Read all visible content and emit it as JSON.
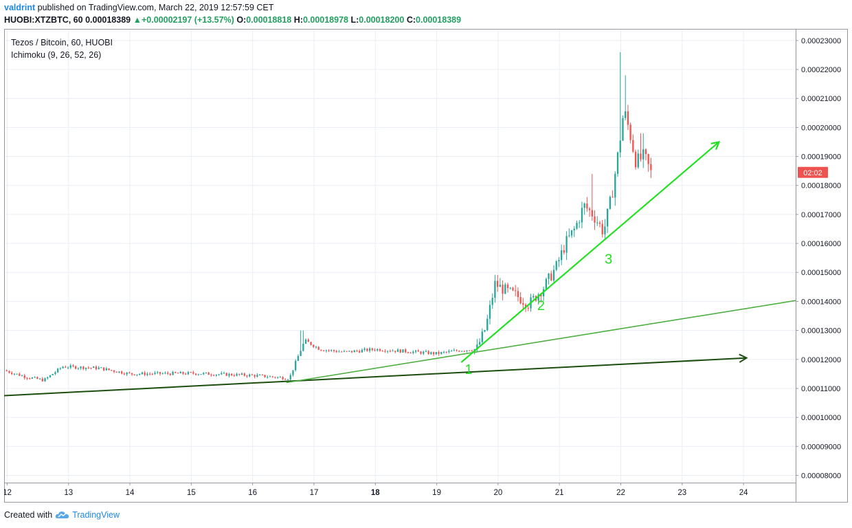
{
  "header": {
    "author": "valdrint",
    "published_text": "published on TradingView.com, March 22, 2019 12:57:59 CET"
  },
  "quote": {
    "symbol": "HUOBI:XTZBTC, 60",
    "last": "0.00018389",
    "change": "+0.00002197 (+13.57%)",
    "o_label": "O:",
    "o": "0.00018818",
    "h_label": "H:",
    "h": "0.00018978",
    "l_label": "L:",
    "l": "0.00018200",
    "c_label": "C:",
    "c": "0.00018389"
  },
  "legend": {
    "title": "Tezos / Bitcoin, 60, HUOBI",
    "indicator": "Ichimoku (9, 26, 52, 26)"
  },
  "footer": {
    "created_with": "Created with",
    "brand": "TradingView"
  },
  "colors": {
    "up": "#26a69a",
    "down": "#ef5350",
    "trend_bright": "#22e022",
    "trend_mid": "#4caf40",
    "trend_dark": "#1b4d0e",
    "price_label_bg": "#ef5350",
    "grid": "#e9eef5"
  },
  "chart_data": {
    "type": "candlestick",
    "timeframe": "60",
    "x_tick_labels": [
      "12",
      "13",
      "14",
      "15",
      "16",
      "17",
      "18",
      "19",
      "20",
      "21",
      "22",
      "23",
      "24"
    ],
    "bold_x_ticks": [
      "18"
    ],
    "y_tick_labels": [
      "0.00008000",
      "0.00009000",
      "0.00010000",
      "0.00011000",
      "0.00012000",
      "0.00013000",
      "0.00014000",
      "0.00015000",
      "0.00016000",
      "0.00017000",
      "0.00018000",
      "0.00019000",
      "0.00020000",
      "0.00021000",
      "0.00022000",
      "0.00023000"
    ],
    "ylim": [
      7.75e-05,
      0.000234
    ],
    "xlim": [
      11.95,
      24.85
    ],
    "price_label": "02:02",
    "price_label_value": 0.0001845,
    "path_points": [
      {
        "day": 11.95,
        "price": 0.0001162
      },
      {
        "day": 12.3,
        "price": 0.000114
      },
      {
        "day": 12.6,
        "price": 0.0001128
      },
      {
        "day": 12.9,
        "price": 0.0001175
      },
      {
        "day": 13.5,
        "price": 0.000117
      },
      {
        "day": 14.0,
        "price": 0.000115
      },
      {
        "day": 15.0,
        "price": 0.0001152
      },
      {
        "day": 16.0,
        "price": 0.0001145
      },
      {
        "day": 16.6,
        "price": 0.0001135
      },
      {
        "day": 16.72,
        "price": 0.00012
      },
      {
        "day": 16.85,
        "price": 0.0001265
      },
      {
        "day": 17.1,
        "price": 0.0001235
      },
      {
        "day": 17.5,
        "price": 0.0001225
      },
      {
        "day": 18.0,
        "price": 0.0001235
      },
      {
        "day": 18.5,
        "price": 0.0001228
      },
      {
        "day": 19.0,
        "price": 0.000122
      },
      {
        "day": 19.4,
        "price": 0.0001232
      },
      {
        "day": 19.65,
        "price": 0.0001235
      },
      {
        "day": 19.8,
        "price": 0.000131
      },
      {
        "day": 19.95,
        "price": 0.000146
      },
      {
        "day": 20.1,
        "price": 0.000144
      },
      {
        "day": 20.3,
        "price": 0.000142
      },
      {
        "day": 20.5,
        "price": 0.000139
      },
      {
        "day": 20.75,
        "price": 0.000145
      },
      {
        "day": 20.95,
        "price": 0.000152
      },
      {
        "day": 21.1,
        "price": 0.00016
      },
      {
        "day": 21.25,
        "price": 0.000165
      },
      {
        "day": 21.4,
        "price": 0.000173
      },
      {
        "day": 21.55,
        "price": 0.00017
      },
      {
        "day": 21.72,
        "price": 0.000164
      },
      {
        "day": 21.85,
        "price": 0.000176
      },
      {
        "day": 21.95,
        "price": 0.00019
      },
      {
        "day": 22.05,
        "price": 0.000206
      },
      {
        "day": 22.15,
        "price": 0.000198
      },
      {
        "day": 22.25,
        "price": 0.000188
      },
      {
        "day": 22.38,
        "price": 0.00019
      },
      {
        "day": 22.5,
        "price": 0.0001839
      }
    ],
    "spikes": [
      {
        "day": 16.8,
        "high": 0.00013
      },
      {
        "day": 22.0,
        "high": 0.000226
      },
      {
        "day": 22.08,
        "high": 0.000218
      },
      {
        "day": 21.55,
        "high": 0.000184
      },
      {
        "day": 22.35,
        "high": 0.000198
      }
    ],
    "trendlines": [
      {
        "from": {
          "day": 11.95,
          "price": 0.0001075
        },
        "to": {
          "day": 24.05,
          "price": 0.0001205
        },
        "style": "dark",
        "arrow": true
      },
      {
        "from": {
          "day": 16.55,
          "price": 0.000112
        },
        "to": {
          "day": 24.85,
          "price": 0.0001403
        },
        "style": "mid",
        "arrow": false
      },
      {
        "from": {
          "day": 19.4,
          "price": 0.000119
        },
        "to": {
          "day": 23.6,
          "price": 0.000195
        },
        "style": "bright",
        "arrow": true
      }
    ],
    "annotations": [
      {
        "text": "1",
        "day": 19.52,
        "price": 0.000115
      },
      {
        "text": "2",
        "day": 20.7,
        "price": 0.000137
      },
      {
        "text": "3",
        "day": 21.8,
        "price": 0.000153
      }
    ]
  }
}
